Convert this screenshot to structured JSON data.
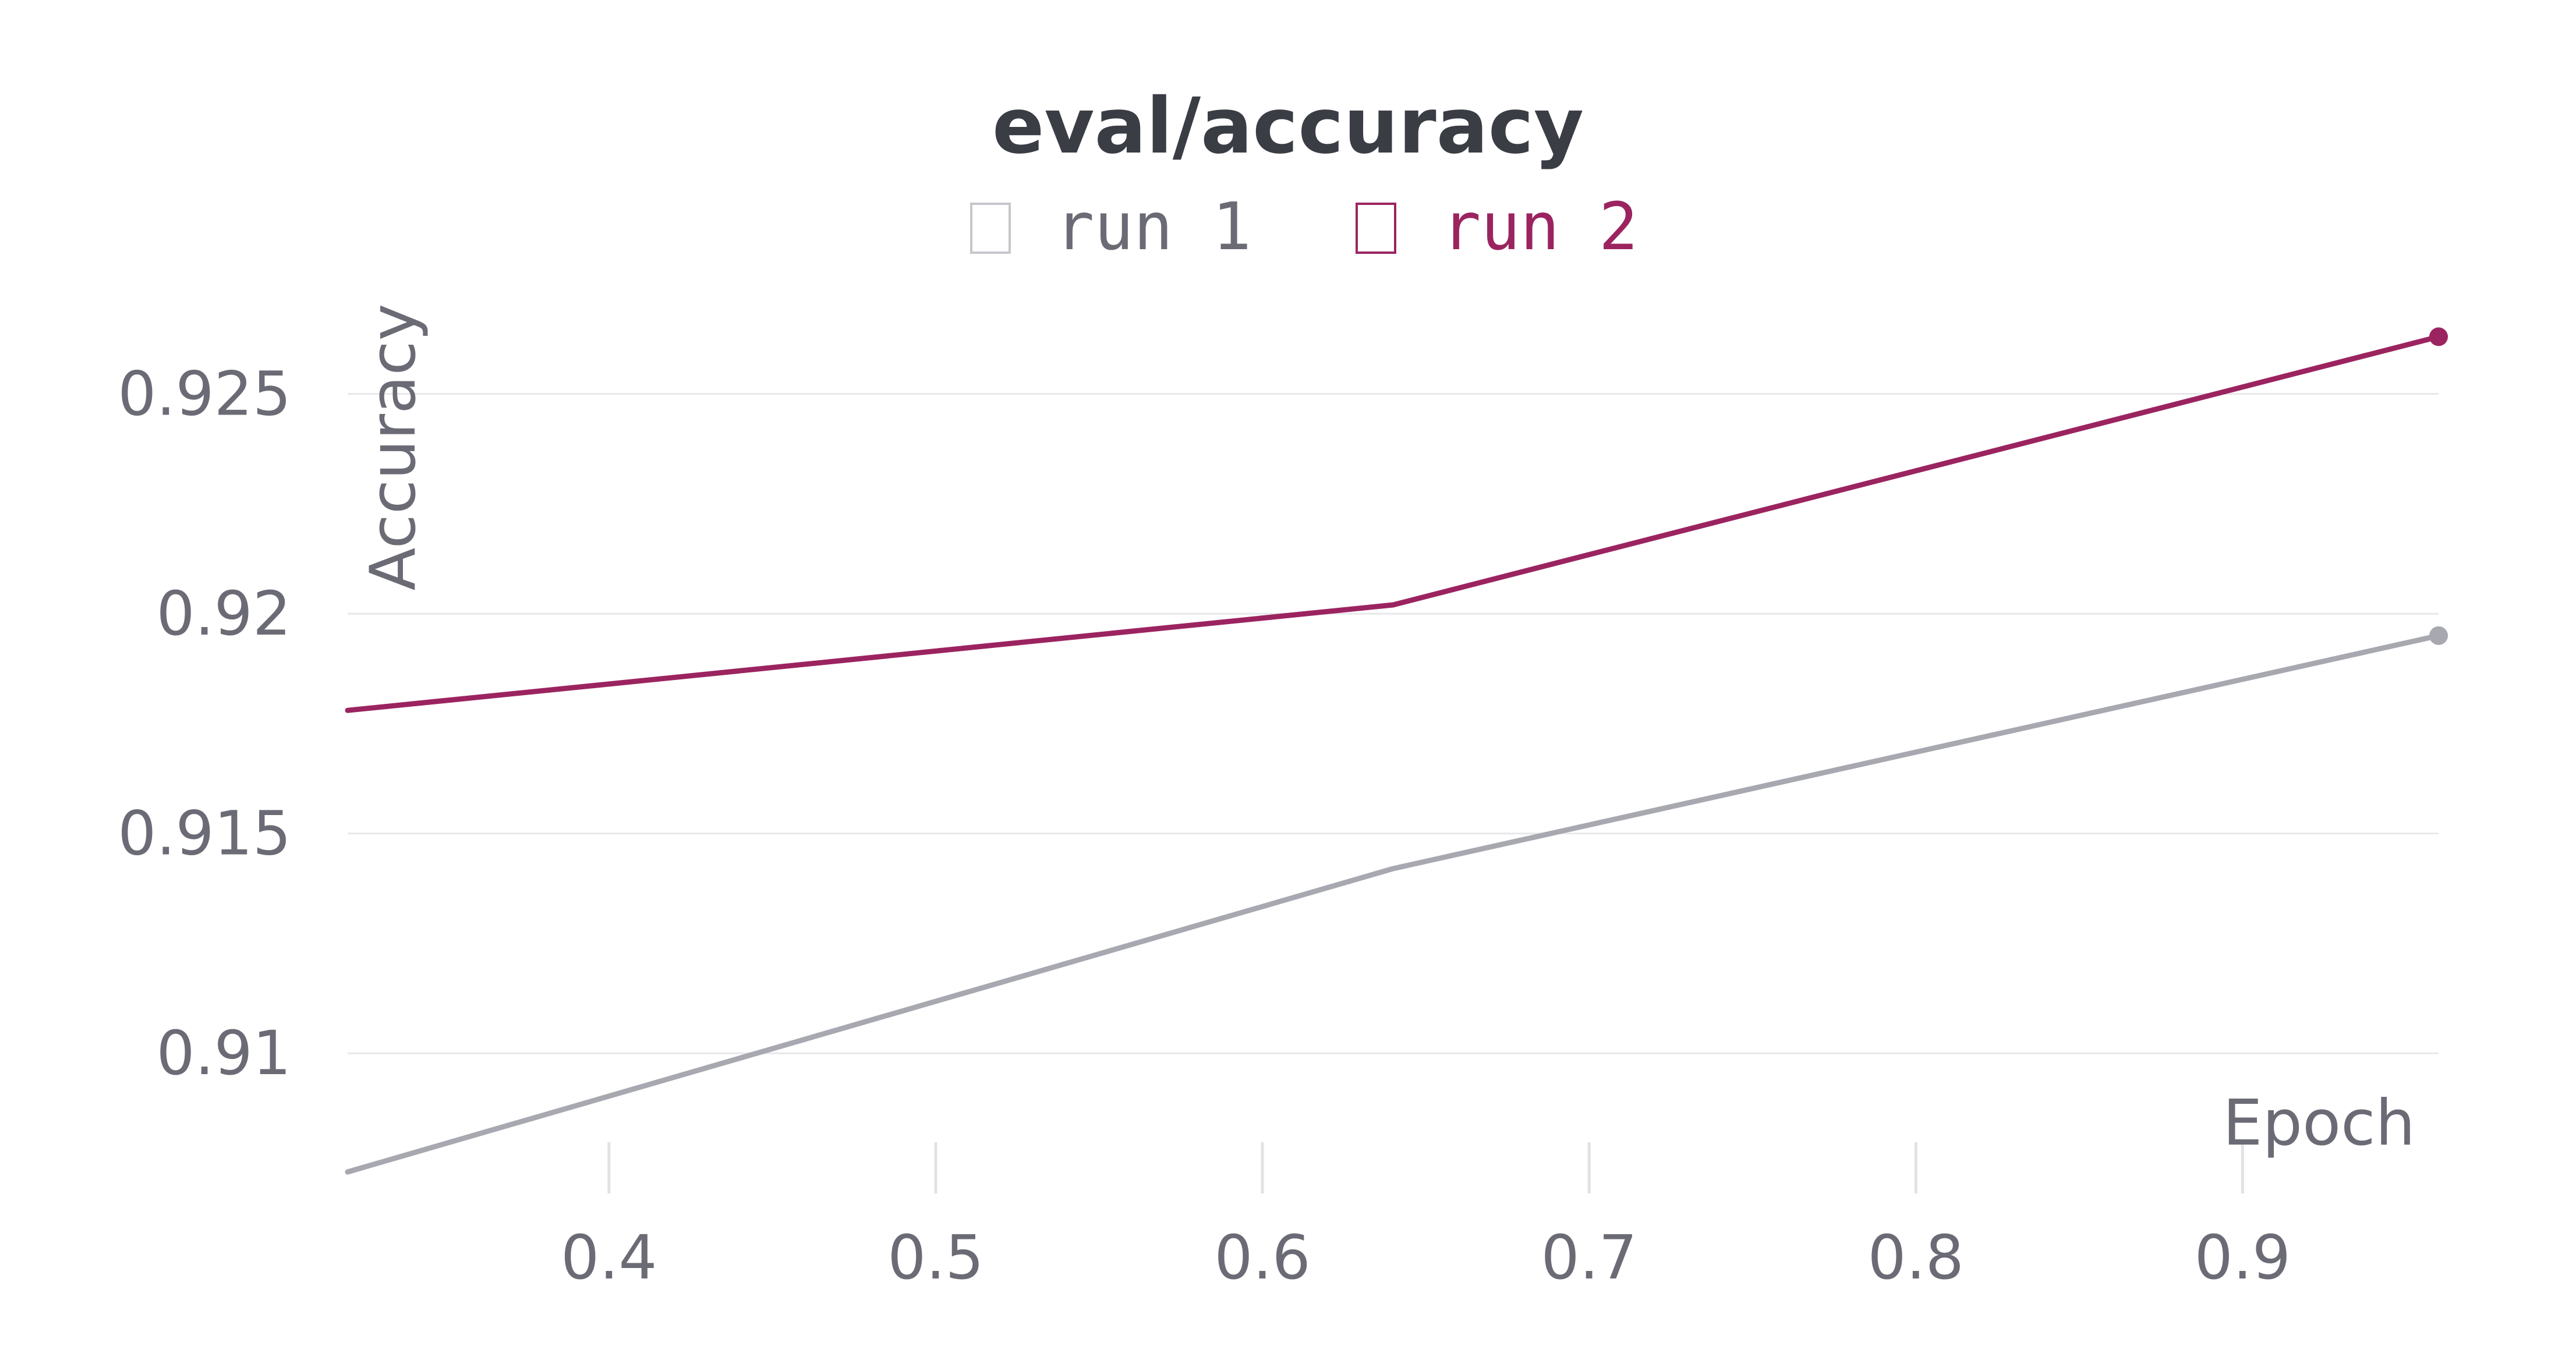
{
  "chart_data": {
    "type": "line",
    "title": "eval/accuracy",
    "xlabel": "Epoch",
    "ylabel": "Accuracy",
    "xlim": [
      0.32,
      0.96
    ],
    "ylim": [
      0.9073,
      0.9271
    ],
    "x_ticks": [
      0.4,
      0.5,
      0.6,
      0.7,
      0.8,
      0.9
    ],
    "x_tick_labels": [
      "0.4",
      "0.5",
      "0.6",
      "0.7",
      "0.8",
      "0.9"
    ],
    "y_ticks": [
      0.91,
      0.915,
      0.92,
      0.925
    ],
    "y_tick_labels": [
      "0.91",
      "0.915",
      "0.92",
      "0.925"
    ],
    "grid": "horizontal",
    "legend": "top-center",
    "series": [
      {
        "name": "run 1",
        "color": "#a7a8b0",
        "x": [
          0.32,
          0.64,
          0.96
        ],
        "y": [
          0.9073,
          0.9142,
          0.9195
        ]
      },
      {
        "name": "run 2",
        "color": "#9b2460",
        "x": [
          0.32,
          0.64,
          0.96
        ],
        "y": [
          0.9178,
          0.9202,
          0.9263
        ]
      }
    ]
  }
}
